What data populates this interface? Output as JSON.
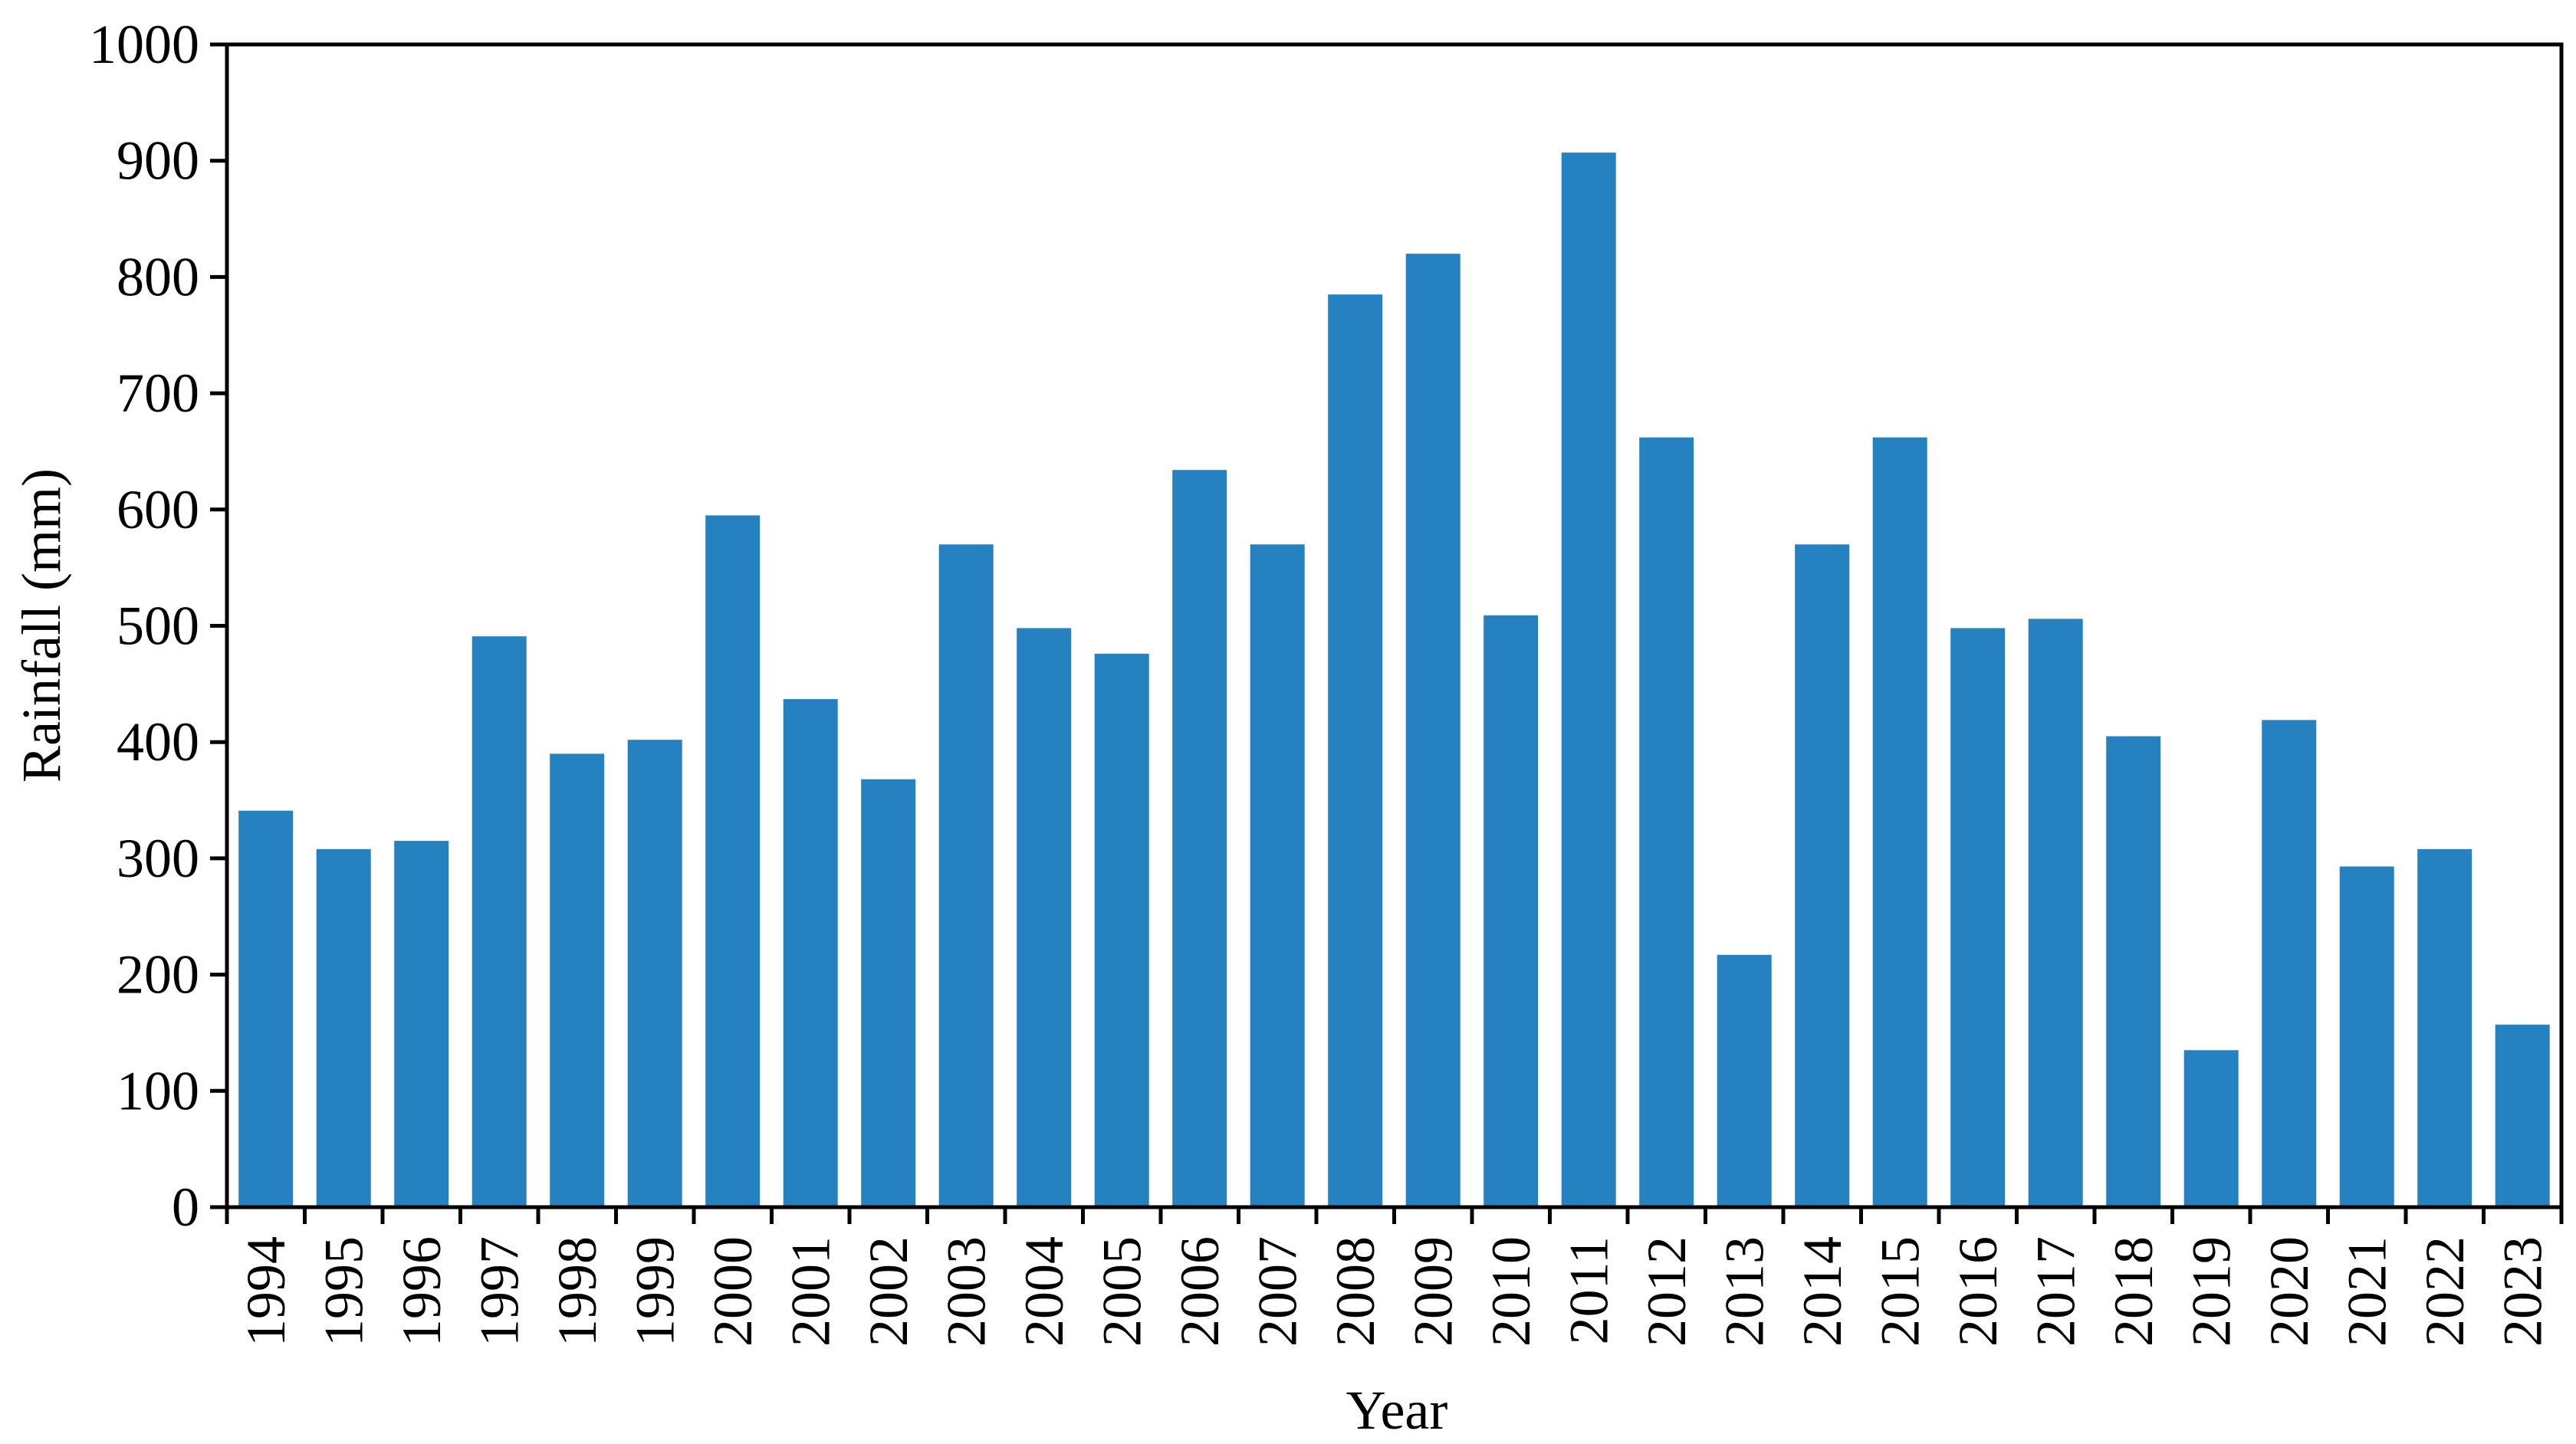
{
  "chart_data": {
    "type": "bar",
    "title": "",
    "xlabel": "Year",
    "ylabel": "Rainfall (mm)",
    "ylim": [
      0,
      1000
    ],
    "yticks": [
      0,
      100,
      200,
      300,
      400,
      500,
      600,
      700,
      800,
      900,
      1000
    ],
    "grid": false,
    "legend": "none",
    "bar_color": "#2681C1",
    "categories": [
      "1994",
      "1995",
      "1996",
      "1997",
      "1998",
      "1999",
      "2000",
      "2001",
      "2002",
      "2003",
      "2004",
      "2005",
      "2006",
      "2007",
      "2008",
      "2009",
      "2010",
      "2011",
      "2012",
      "2013",
      "2014",
      "2015",
      "2016",
      "2017",
      "2018",
      "2019",
      "2020",
      "2021",
      "2022",
      "2023"
    ],
    "values": [
      341,
      308,
      315,
      491,
      390,
      402,
      595,
      437,
      368,
      570,
      498,
      476,
      634,
      570,
      785,
      820,
      509,
      907,
      662,
      217,
      570,
      662,
      498,
      506,
      405,
      135,
      419,
      293,
      308,
      157
    ]
  }
}
